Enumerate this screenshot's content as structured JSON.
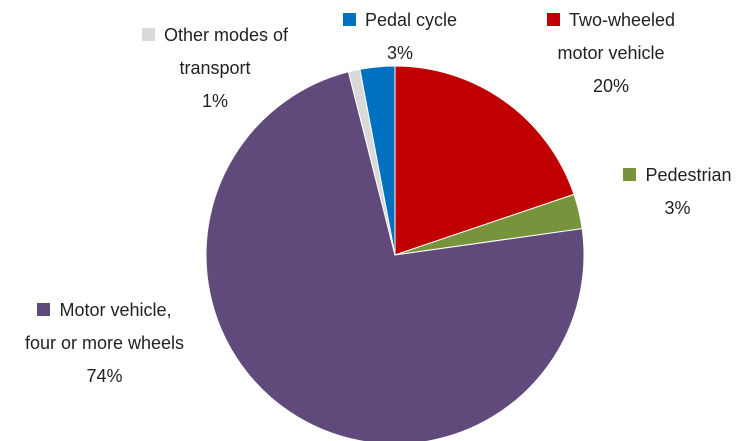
{
  "chart_data": {
    "type": "pie",
    "categories": [
      "Two-wheeled motor vehicle",
      "Pedestrian",
      "Motor vehicle, four or more wheels",
      "Other modes of transport",
      "Pedal cycle"
    ],
    "values": [
      20,
      3,
      74,
      1,
      3
    ],
    "value_labels": [
      "20%",
      "3%",
      "74%",
      "1%",
      "3%"
    ],
    "colors": [
      "#c00000",
      "#77933c",
      "#604a7b",
      "#d9d9d9",
      "#0070c0"
    ]
  }
}
